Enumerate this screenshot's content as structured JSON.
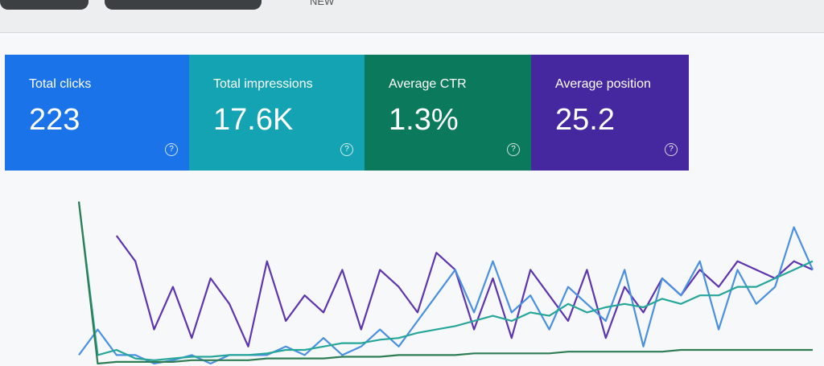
{
  "toolbar": {
    "new_label": "NEW"
  },
  "cards": [
    {
      "label": "Total clicks",
      "value": "223",
      "color": "#1a73e8"
    },
    {
      "label": "Total impressions",
      "value": "17.6K",
      "color": "#14a3b3"
    },
    {
      "label": "Average CTR",
      "value": "1.3%",
      "color": "#0b7a5c"
    },
    {
      "label": "Average position",
      "value": "25.2",
      "color": "#4527a0"
    }
  ],
  "chart_data": {
    "type": "line",
    "ylim": [
      0,
      100
    ],
    "series": [
      {
        "color": "#5e35b1",
        "values": [
          null,
          null,
          75,
          60,
          20,
          45,
          15,
          50,
          35,
          10,
          60,
          25,
          40,
          30,
          55,
          20,
          55,
          45,
          30,
          65,
          55,
          20,
          50,
          15,
          55,
          40,
          25,
          55,
          15,
          45,
          30,
          50,
          40,
          55,
          45,
          60,
          55,
          50,
          60,
          55
        ]
      },
      {
        "color": "#4a90e2",
        "values": [
          5,
          20,
          5,
          5,
          0,
          2,
          5,
          0,
          5,
          5,
          5,
          10,
          5,
          15,
          5,
          10,
          20,
          10,
          25,
          40,
          55,
          30,
          60,
          30,
          40,
          20,
          45,
          35,
          25,
          55,
          10,
          50,
          40,
          60,
          20,
          55,
          35,
          45,
          80,
          55
        ]
      },
      {
        "color": "#26a69a",
        "values": [
          95,
          5,
          8,
          3,
          2,
          3,
          4,
          4,
          5,
          5,
          6,
          8,
          8,
          10,
          12,
          12,
          14,
          15,
          18,
          20,
          22,
          25,
          28,
          25,
          30,
          28,
          35,
          30,
          33,
          35,
          33,
          38,
          35,
          40,
          40,
          45,
          45,
          50,
          55,
          60
        ]
      },
      {
        "color": "#2e7d55",
        "values": [
          95,
          0,
          1,
          1,
          1,
          1,
          2,
          2,
          2,
          2,
          3,
          3,
          3,
          3,
          4,
          4,
          4,
          5,
          5,
          5,
          5,
          6,
          6,
          6,
          6,
          6,
          7,
          7,
          7,
          7,
          7,
          7,
          8,
          8,
          8,
          8,
          8,
          8,
          8,
          8
        ]
      }
    ]
  }
}
